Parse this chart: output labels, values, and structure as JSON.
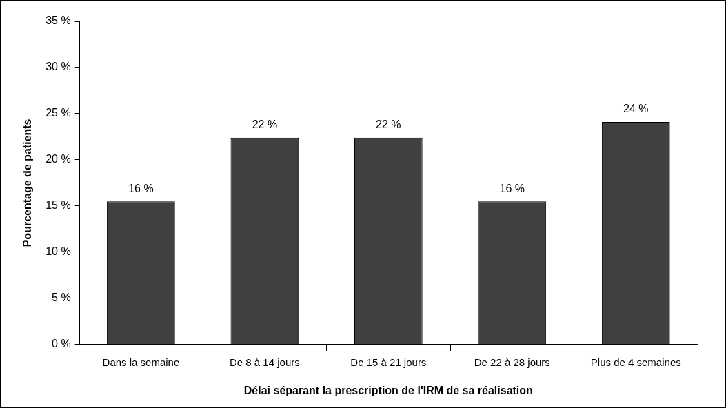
{
  "chart_data": {
    "type": "bar",
    "xlabel": "Délai séparant la prescription de l'IRM de sa réalisation",
    "ylabel": "Pourcentage de patients",
    "categories": [
      "Dans la semaine",
      "De 8 à 14 jours",
      "De 15 à 21 jours",
      "De 22 à 28 jours",
      "Plus de 4 semaines"
    ],
    "values": [
      15.5,
      22.4,
      22.4,
      15.5,
      24.1
    ],
    "value_labels": [
      "16 %",
      "22 %",
      "22 %",
      "16 %",
      "24 %"
    ],
    "color": "#404040",
    "ylim": [
      0,
      35
    ],
    "yticks": [
      {
        "value": 0,
        "label": "0 %"
      },
      {
        "value": 5,
        "label": "5 %"
      },
      {
        "value": 10,
        "label": "10 %"
      },
      {
        "value": 15,
        "label": "15 %"
      },
      {
        "value": 20,
        "label": "20 %"
      },
      {
        "value": 25,
        "label": "25 %"
      },
      {
        "value": 30,
        "label": "30 %"
      },
      {
        "value": 35,
        "label": "35 %"
      }
    ],
    "grid": false,
    "legend": false
  }
}
